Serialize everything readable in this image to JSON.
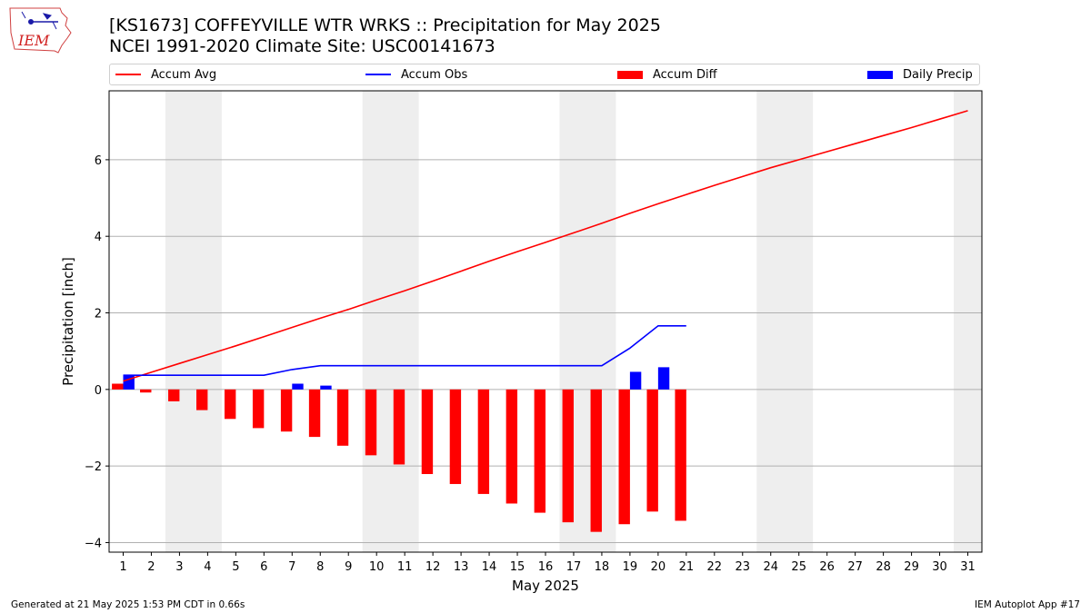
{
  "header": {
    "logo_text": "IEM",
    "title": "[KS1673] COFFEYVILLE WTR WRKS :: Precipitation for May 2025",
    "subtitle": "NCEI 1991-2020 Climate Site: USC00141673"
  },
  "legend": {
    "placement": "top",
    "items": [
      {
        "label": "Accum Avg",
        "color": "#ff0000",
        "kind": "line"
      },
      {
        "label": "Accum Obs",
        "color": "#0000ff",
        "kind": "line"
      },
      {
        "label": "Accum Diff",
        "color": "#ff0000",
        "kind": "bar"
      },
      {
        "label": "Daily Precip",
        "color": "#0000ff",
        "kind": "bar"
      }
    ]
  },
  "chart_data": {
    "type": "bar",
    "xlabel": "May 2025",
    "ylabel": "Precipitation [inch]",
    "xlim": [
      0.5,
      31.5
    ],
    "ylim": [
      -4.25,
      7.8
    ],
    "x_ticks": [
      1,
      2,
      3,
      4,
      5,
      6,
      7,
      8,
      9,
      10,
      11,
      12,
      13,
      14,
      15,
      16,
      17,
      18,
      19,
      20,
      21,
      22,
      23,
      24,
      25,
      26,
      27,
      28,
      29,
      30,
      31
    ],
    "y_ticks": [
      -4,
      -2,
      0,
      2,
      4,
      6
    ],
    "grid": "y",
    "weekend_shading": [
      [
        2.5,
        4.5
      ],
      [
        9.5,
        11.5
      ],
      [
        16.5,
        18.5
      ],
      [
        23.5,
        25.5
      ],
      [
        30.5,
        31.5
      ]
    ],
    "series": [
      {
        "name": "Accum Avg",
        "type": "line",
        "color": "#ff0000",
        "x": [
          1,
          2,
          3,
          4,
          5,
          6,
          7,
          8,
          9,
          10,
          11,
          12,
          13,
          14,
          15,
          16,
          17,
          18,
          19,
          20,
          21,
          22,
          23,
          24,
          25,
          26,
          27,
          28,
          29,
          30,
          31
        ],
        "values": [
          0.22,
          0.45,
          0.68,
          0.91,
          1.14,
          1.38,
          1.62,
          1.86,
          2.09,
          2.34,
          2.58,
          2.83,
          3.09,
          3.35,
          3.6,
          3.84,
          4.09,
          4.34,
          4.6,
          4.85,
          5.09,
          5.33,
          5.56,
          5.79,
          6.0,
          6.21,
          6.42,
          6.63,
          6.84,
          7.06,
          7.28
        ]
      },
      {
        "name": "Accum Obs",
        "type": "line",
        "color": "#0000ff",
        "x": [
          1,
          2,
          3,
          4,
          5,
          6,
          7,
          8,
          9,
          10,
          11,
          12,
          13,
          14,
          15,
          16,
          17,
          18,
          19,
          20,
          21
        ],
        "values": [
          0.37,
          0.37,
          0.37,
          0.37,
          0.37,
          0.37,
          0.52,
          0.62,
          0.62,
          0.62,
          0.62,
          0.62,
          0.62,
          0.62,
          0.62,
          0.62,
          0.62,
          0.62,
          1.08,
          1.66,
          1.66
        ]
      },
      {
        "name": "Accum Diff",
        "type": "bar",
        "color": "#ff0000",
        "x": [
          1,
          2,
          3,
          4,
          5,
          6,
          7,
          8,
          9,
          10,
          11,
          12,
          13,
          14,
          15,
          16,
          17,
          18,
          19,
          20,
          21
        ],
        "values": [
          0.15,
          -0.08,
          -0.31,
          -0.54,
          -0.77,
          -1.01,
          -1.1,
          -1.24,
          -1.47,
          -1.72,
          -1.96,
          -2.21,
          -2.47,
          -2.73,
          -2.98,
          -3.22,
          -3.47,
          -3.72,
          -3.52,
          -3.19,
          -3.43
        ]
      },
      {
        "name": "Daily Precip",
        "type": "bar",
        "color": "#0000ff",
        "x": [
          1,
          2,
          3,
          4,
          5,
          6,
          7,
          8,
          9,
          10,
          11,
          12,
          13,
          14,
          15,
          16,
          17,
          18,
          19,
          20,
          21
        ],
        "values": [
          0.37,
          0,
          0,
          0,
          0,
          0,
          0.15,
          0.1,
          0,
          0,
          0,
          0,
          0,
          0,
          0,
          0,
          0,
          0,
          0.46,
          0.58,
          0
        ]
      }
    ]
  },
  "footer": {
    "left": "Generated at 21 May 2025 1:53 PM CDT in 0.66s",
    "right": "IEM Autoplot App #17"
  }
}
